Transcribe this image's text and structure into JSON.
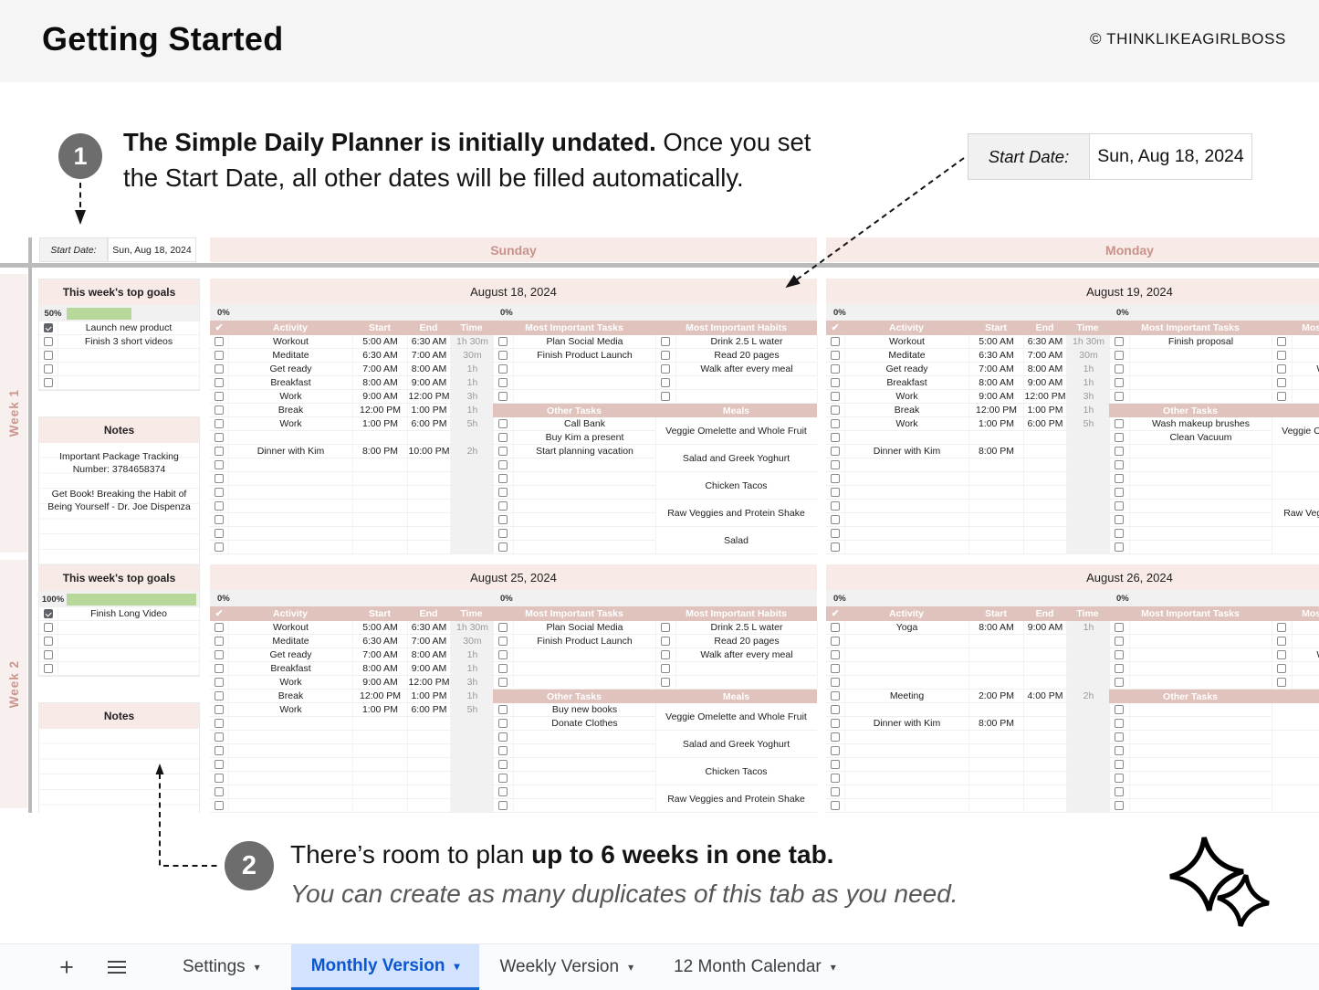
{
  "header": {
    "title": "Getting Started",
    "copyright": "© THINKLIKEAGIRLBOSS"
  },
  "callout1": {
    "number": "1",
    "bold": "The Simple Daily Planner is initially undated.",
    "regular": " Once you set",
    "line2": "the Start Date, all other dates will be filled automatically."
  },
  "start_date_box": {
    "label": "Start Date:",
    "value": "Sun, Aug 18, 2024"
  },
  "sheet": {
    "start_date_label": "Start Date:",
    "start_date_value": "Sun, Aug 18, 2024",
    "day_headers": [
      "Sunday",
      "Monday"
    ],
    "goals_header": "This week's top goals",
    "notes_header": "Notes",
    "col_headers": {
      "check": "✔",
      "activity": "Activity",
      "start": "Start",
      "end": "End",
      "time": "Time",
      "tasks": "Most Important Tasks",
      "habits": "Most Important Habits",
      "other": "Other Tasks",
      "meals": "Meals"
    },
    "weeks": [
      {
        "label": "Week 1",
        "progress_label": "50%",
        "progress_pct": 50,
        "goals": [
          {
            "checked": true,
            "text": "Launch new product"
          },
          {
            "checked": false,
            "text": "Finish 3 short videos"
          },
          {
            "checked": false,
            "text": ""
          },
          {
            "checked": false,
            "text": ""
          },
          {
            "checked": false,
            "text": ""
          }
        ],
        "notes": [
          "Important Package Tracking Number: 3784658374",
          "Get Book! Breaking the Habit of Being Yourself - Dr. Joe Dispenza"
        ],
        "days": [
          {
            "date": "August 18, 2024",
            "progress_left": "0%",
            "progress_right": "0%",
            "activities": [
              {
                "name": "Workout",
                "start": "5:00 AM",
                "end": "6:30 AM",
                "time": "1h 30m"
              },
              {
                "name": "Meditate",
                "start": "6:30 AM",
                "end": "7:00 AM",
                "time": "30m"
              },
              {
                "name": "Get ready",
                "start": "7:00 AM",
                "end": "8:00 AM",
                "time": "1h"
              },
              {
                "name": "Breakfast",
                "start": "8:00 AM",
                "end": "9:00 AM",
                "time": "1h"
              },
              {
                "name": "Work",
                "start": "9:00 AM",
                "end": "12:00 PM",
                "time": "3h"
              },
              {
                "name": "Break",
                "start": "12:00 PM",
                "end": "1:00 PM",
                "time": "1h"
              },
              {
                "name": "Work",
                "start": "1:00 PM",
                "end": "6:00 PM",
                "time": "5h"
              },
              {},
              {
                "name": "Dinner with Kim",
                "start": "8:00 PM",
                "end": "10:00 PM",
                "time": "2h"
              }
            ],
            "tasks": [
              "Plan Social Media",
              "Finish Product Launch"
            ],
            "habits": [
              "Drink 2.5 L water",
              "Read 20 pages",
              "Walk after every meal"
            ],
            "other_tasks": [
              "Call Bank",
              "Buy Kim a present",
              "Start planning vacation"
            ],
            "meals": [
              "Veggie Omelette and Whole Fruit",
              "Salad and Greek Yoghurt",
              "Chicken Tacos",
              "Raw Veggies and Protein Shake",
              "Salad"
            ]
          },
          {
            "date": "August 19, 2024",
            "progress_left": "0%",
            "progress_right": "0%",
            "activities": [
              {
                "name": "Workout",
                "start": "5:00 AM",
                "end": "6:30 AM",
                "time": "1h 30m"
              },
              {
                "name": "Meditate",
                "start": "6:30 AM",
                "end": "7:00 AM",
                "time": "30m"
              },
              {
                "name": "Get ready",
                "start": "7:00 AM",
                "end": "8:00 AM",
                "time": "1h"
              },
              {
                "name": "Breakfast",
                "start": "8:00 AM",
                "end": "9:00 AM",
                "time": "1h"
              },
              {
                "name": "Work",
                "start": "9:00 AM",
                "end": "12:00 PM",
                "time": "3h"
              },
              {
                "name": "Break",
                "start": "12:00 PM",
                "end": "1:00 PM",
                "time": "1h"
              },
              {
                "name": "Work",
                "start": "1:00 PM",
                "end": "6:00 PM",
                "time": "5h"
              },
              {},
              {
                "name": "Dinner with Kim",
                "start": "8:00 PM",
                "end": "",
                "time": ""
              }
            ],
            "tasks": [
              "Finish proposal"
            ],
            "habits": [
              "",
              "",
              "Walk after every meal"
            ],
            "other_tasks": [
              "Wash makeup brushes",
              "Clean Vacuum"
            ],
            "meals": [
              "Veggie Omelette and Whole Fruit",
              "",
              "",
              "Raw Veggies and Protein Shake",
              ""
            ]
          }
        ]
      },
      {
        "label": "Week 2",
        "progress_label": "100%",
        "progress_pct": 100,
        "goals": [
          {
            "checked": true,
            "text": "Finish Long Video"
          },
          {
            "checked": false,
            "text": ""
          },
          {
            "checked": false,
            "text": ""
          },
          {
            "checked": false,
            "text": ""
          },
          {
            "checked": false,
            "text": ""
          }
        ],
        "notes": [],
        "days": [
          {
            "date": "August 25, 2024",
            "progress_left": "0%",
            "progress_right": "0%",
            "activities": [
              {
                "name": "Workout",
                "start": "5:00 AM",
                "end": "6:30 AM",
                "time": "1h 30m"
              },
              {
                "name": "Meditate",
                "start": "6:30 AM",
                "end": "7:00 AM",
                "time": "30m"
              },
              {
                "name": "Get ready",
                "start": "7:00 AM",
                "end": "8:00 AM",
                "time": "1h"
              },
              {
                "name": "Breakfast",
                "start": "8:00 AM",
                "end": "9:00 AM",
                "time": "1h"
              },
              {
                "name": "Work",
                "start": "9:00 AM",
                "end": "12:00 PM",
                "time": "3h"
              },
              {
                "name": "Break",
                "start": "12:00 PM",
                "end": "1:00 PM",
                "time": "1h"
              },
              {
                "name": "Work",
                "start": "1:00 PM",
                "end": "6:00 PM",
                "time": "5h"
              }
            ],
            "tasks": [
              "Plan Social Media",
              "Finish Product Launch"
            ],
            "habits": [
              "Drink 2.5 L water",
              "Read 20 pages",
              "Walk after every meal"
            ],
            "other_tasks": [
              "Buy new books",
              "Donate Clothes"
            ],
            "meals": [
              "Veggie Omelette and Whole Fruit",
              "Salad and Greek Yoghurt",
              "Chicken Tacos",
              "Raw Veggies and Protein Shake",
              ""
            ]
          },
          {
            "date": "August 26, 2024",
            "progress_left": "0%",
            "progress_right": "0%",
            "activities": [
              {
                "name": "Yoga",
                "start": "8:00 AM",
                "end": "9:00 AM",
                "time": "1h"
              },
              {},
              {},
              {},
              {},
              {
                "name": "Meeting",
                "start": "2:00 PM",
                "end": "4:00 PM",
                "time": "2h"
              },
              {},
              {
                "name": "Dinner with Kim",
                "start": "8:00 PM",
                "end": "",
                "time": ""
              }
            ],
            "tasks": [],
            "habits": [
              "",
              "",
              "Walk after every meal"
            ],
            "other_tasks": [],
            "meals": []
          }
        ]
      }
    ]
  },
  "callout2": {
    "number": "2",
    "pre": "There’s room to plan ",
    "bold": "up to 6 weeks in one tab.",
    "line2": "You can create as many duplicates of this tab as you need."
  },
  "tabbar": {
    "plus": "+",
    "dropdown": "▾",
    "tabs": [
      {
        "label": "Settings",
        "active": false
      },
      {
        "label": "Monthly Version",
        "active": true
      },
      {
        "label": "Weekly Version",
        "active": false
      },
      {
        "label": "12 Month Calendar",
        "active": false
      }
    ]
  },
  "colors": {
    "pink_light": "#f7eae7",
    "pink_header": "#e0c3bd",
    "rose_text": "#c9928a",
    "progress_green": "#b8d79b",
    "divider_gray": "#bbbbbb",
    "tab_active_bg": "#d3e3fd",
    "tab_active_text": "#0b57d0",
    "badge_gray": "#6d6d6d"
  }
}
